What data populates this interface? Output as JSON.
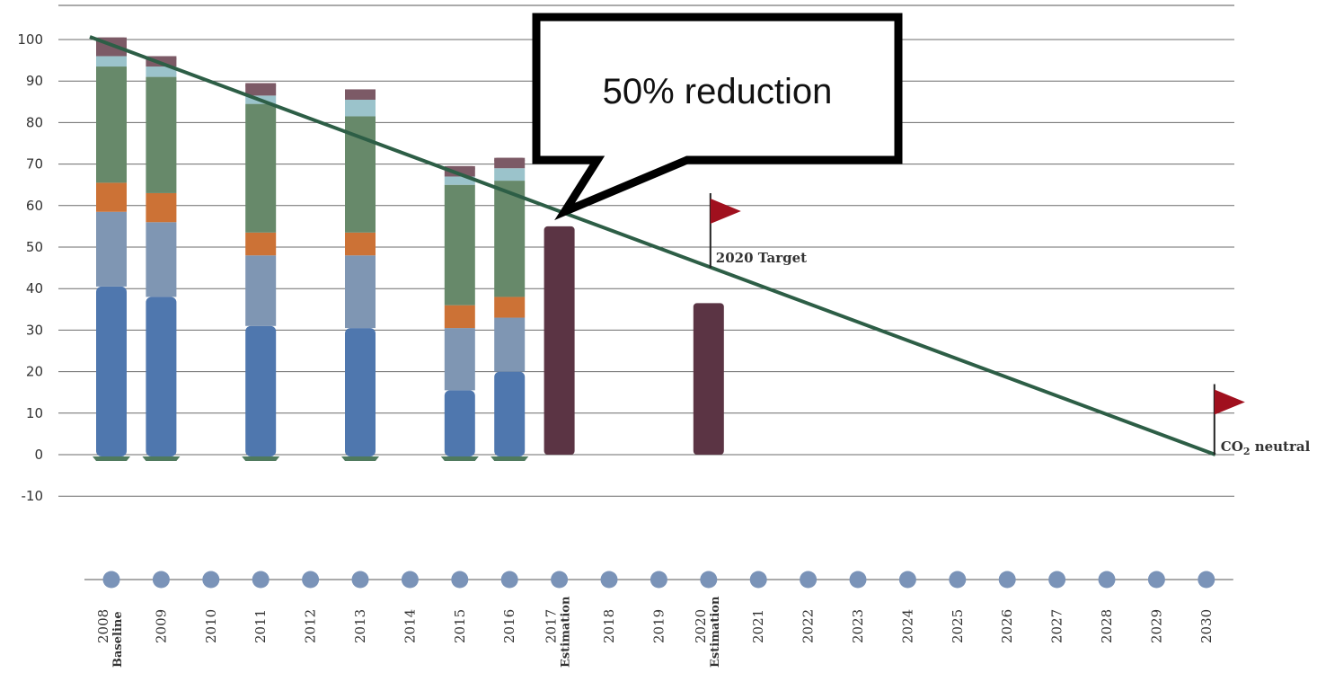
{
  "chart_data": {
    "type": "bar",
    "title": "",
    "xlabel": "",
    "ylabel": "",
    "ylim": [
      -10,
      100
    ],
    "yticks": [
      100,
      90,
      80,
      70,
      60,
      50,
      40,
      30,
      20,
      10,
      0,
      -10
    ],
    "grid": true,
    "years": [
      "2008",
      "2009",
      "2010",
      "2011",
      "2012",
      "2013",
      "2014",
      "2015",
      "2016",
      "2017",
      "2018",
      "2019",
      "2020",
      "2021",
      "2022",
      "2023",
      "2024",
      "2025",
      "2026",
      "2027",
      "2028",
      "2029",
      "2030"
    ],
    "year_sublabels": {
      "2008": "Baseline",
      "2017": "Estimation",
      "2020": "Estimation"
    },
    "stack_colors": [
      "#4f77ae",
      "#7f96b3",
      "#cc7236",
      "#67896a",
      "#9bc3cb",
      "#7c5a66"
    ],
    "stacked_bars": [
      {
        "year": "2008",
        "values": [
          40.5,
          18.0,
          7.0,
          28.0,
          2.5,
          4.5
        ]
      },
      {
        "year": "2009",
        "values": [
          38.0,
          18.0,
          7.0,
          28.0,
          2.5,
          2.5
        ]
      },
      {
        "year": "2011",
        "values": [
          31.0,
          17.0,
          5.5,
          31.0,
          2.0,
          3.0
        ]
      },
      {
        "year": "2013",
        "values": [
          30.5,
          17.5,
          5.5,
          28.0,
          4.0,
          2.5
        ]
      },
      {
        "year": "2015",
        "values": [
          15.5,
          15.0,
          5.5,
          29.0,
          2.0,
          2.5
        ]
      },
      {
        "year": "2016",
        "values": [
          20.0,
          13.0,
          5.0,
          28.0,
          3.0,
          2.5
        ]
      }
    ],
    "estimate_bars": [
      {
        "year": "2017",
        "value": 55,
        "color": "#5b3444"
      },
      {
        "year": "2020",
        "value": 36.5,
        "color": "#5b3444"
      }
    ],
    "trend_line": {
      "color": "#2d5e46",
      "from": {
        "year": "2008",
        "value": 100
      },
      "to": {
        "year": "2030",
        "value": 0
      }
    },
    "flags": [
      {
        "year": "2020",
        "pole_bottom": 45,
        "pole_top": 63,
        "label": "2020 Target",
        "color": "#a0101e"
      },
      {
        "year": "2030",
        "pole_bottom": 0,
        "pole_top": 17,
        "label_main": "CO",
        "label_sub": "2",
        "label_rest": " neutral",
        "color": "#a0101e"
      }
    ],
    "dot_color": "#7a93b8",
    "callout": {
      "text": "50% reduction",
      "pointer_year": "2017",
      "pointer_value": 59
    }
  }
}
